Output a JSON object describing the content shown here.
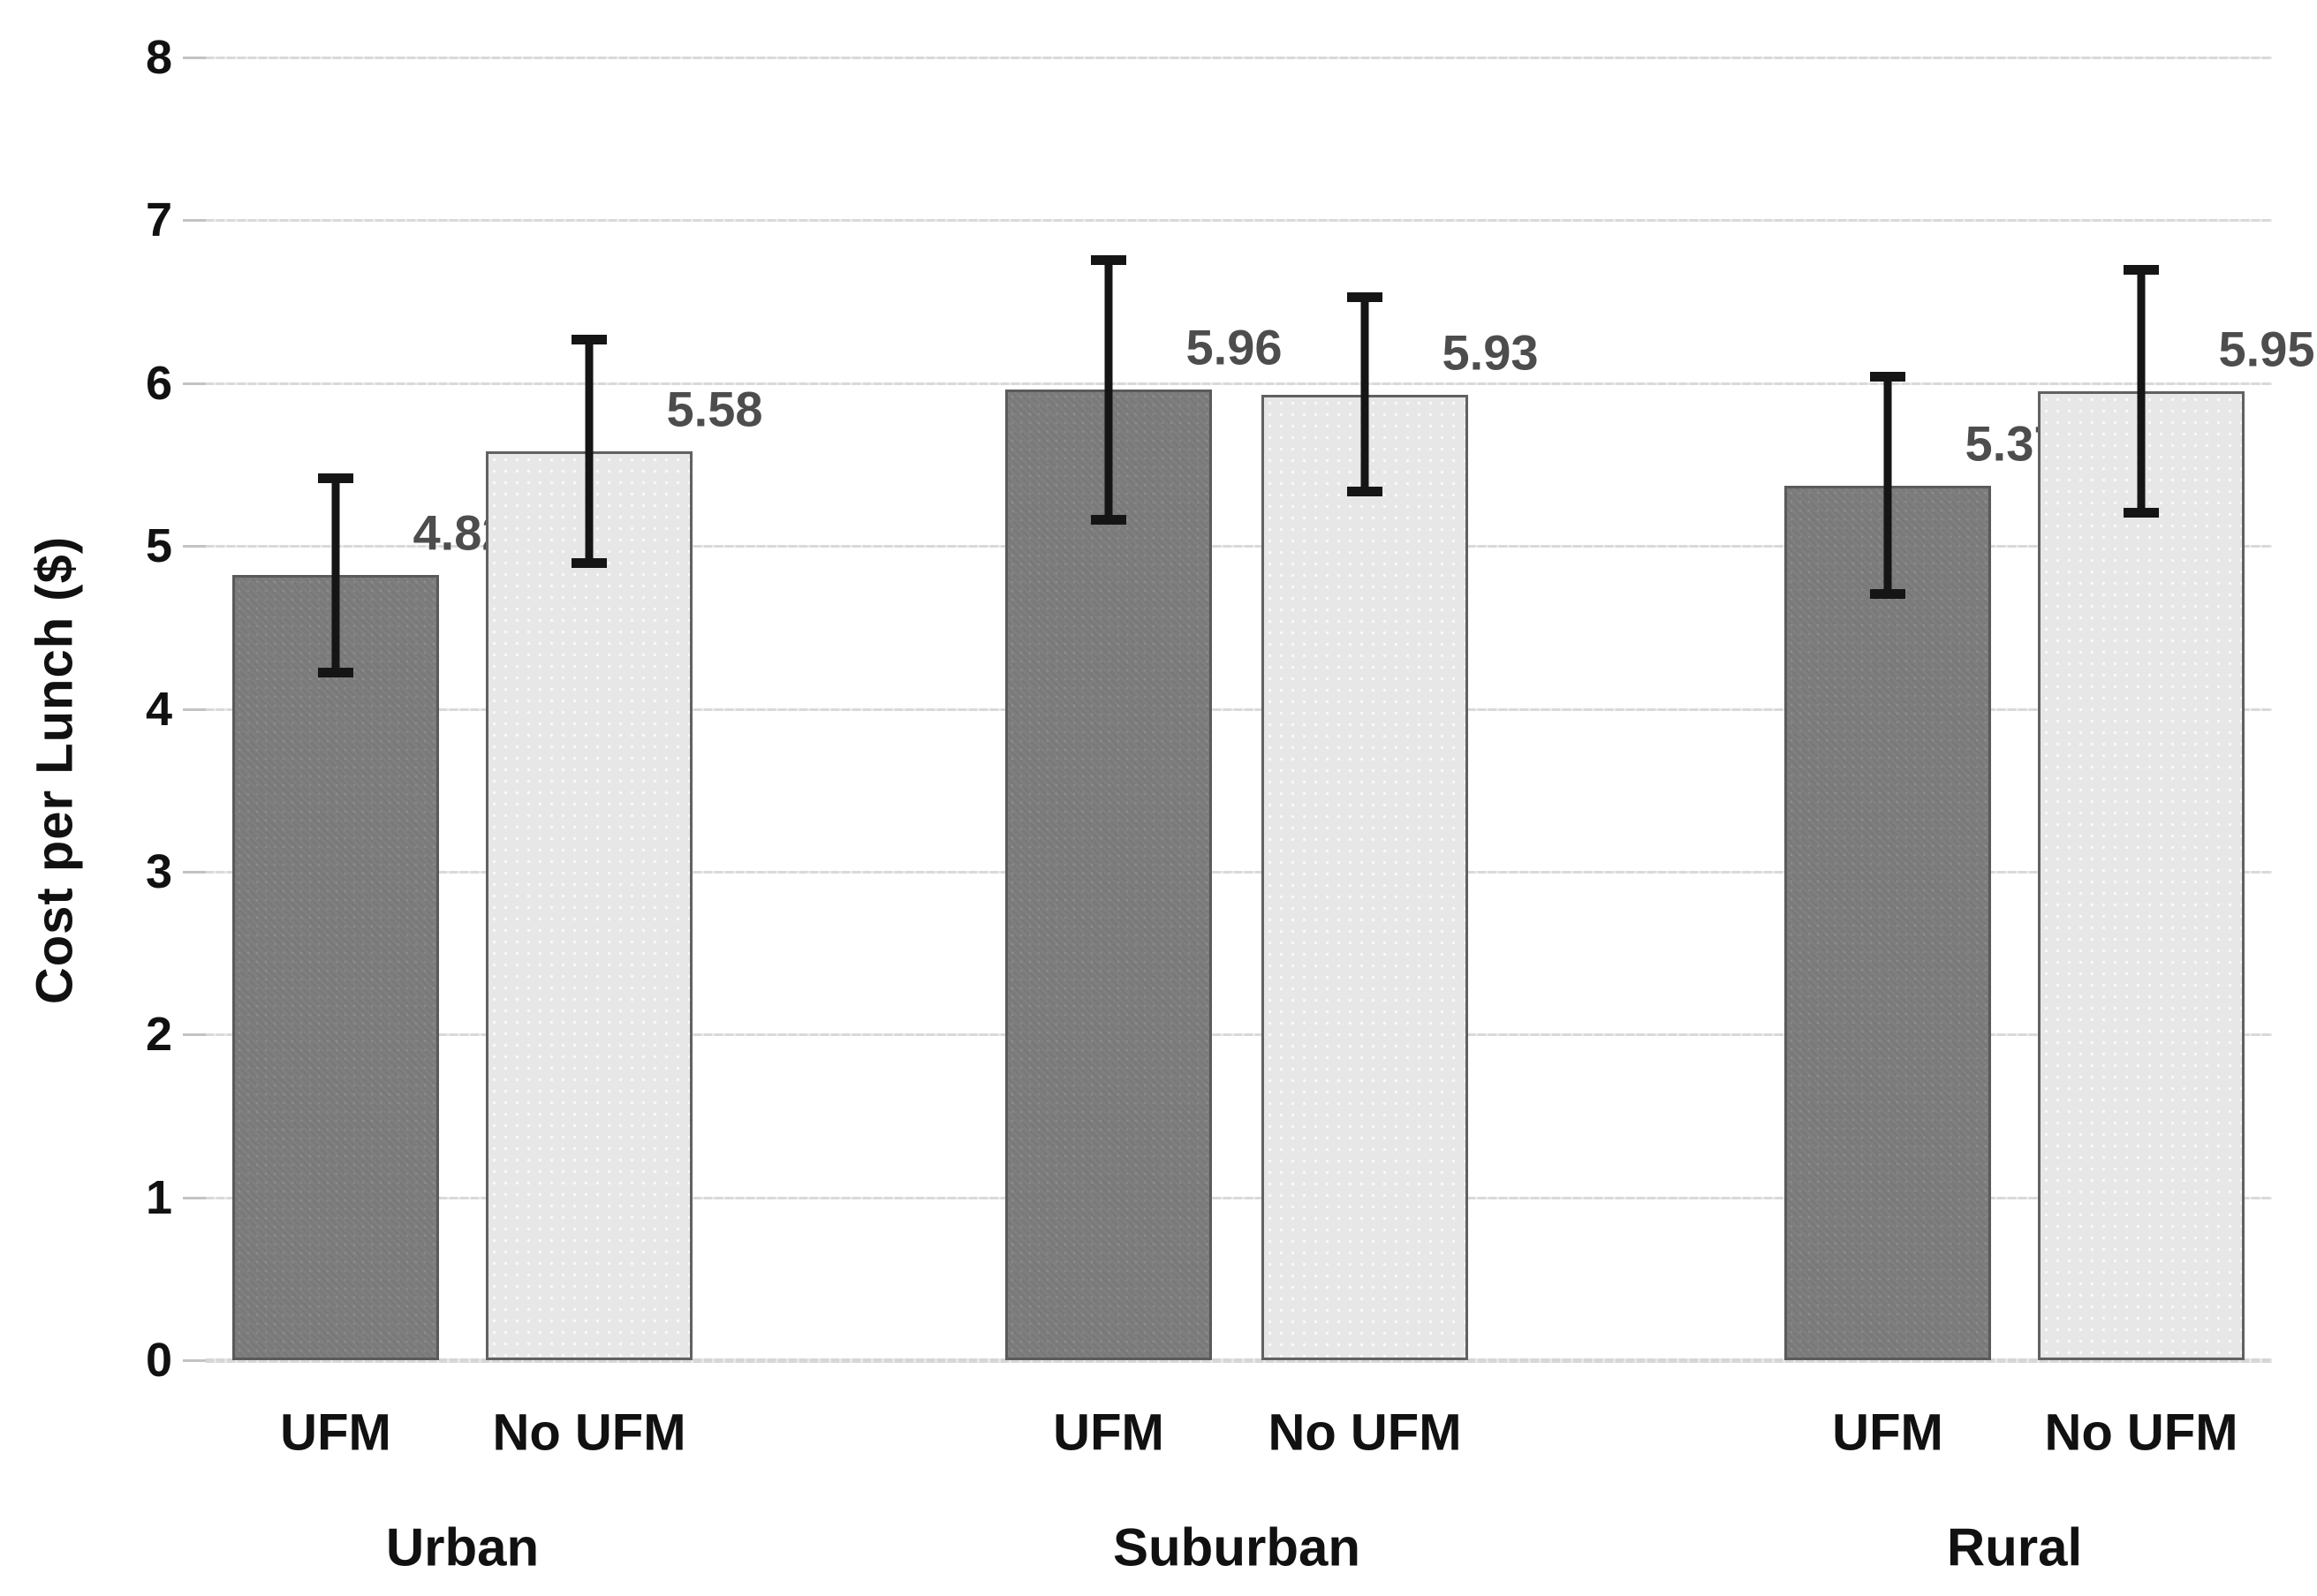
{
  "chart_data": {
    "type": "bar",
    "title": "",
    "xlabel": "",
    "ylabel": "Cost per Lunch ($)",
    "ylim": [
      0,
      8
    ],
    "ytick_step": 1,
    "yticks": [
      "0",
      "1",
      "2",
      "3",
      "4",
      "5",
      "6",
      "7",
      "8"
    ],
    "grid": "horizontal",
    "legend_position": "none",
    "error_bars": true,
    "categories_per_group": [
      "UFM",
      "No UFM"
    ],
    "groups": [
      {
        "label": "Urban",
        "bars": [
          {
            "series": "UFM",
            "value": 4.82,
            "label": "4.82",
            "error_plus": 0.6,
            "error_minus": 0.6
          },
          {
            "series": "No UFM",
            "value": 5.58,
            "label": "5.58",
            "error_plus": 0.69,
            "error_minus": 0.69
          }
        ]
      },
      {
        "label": "Suburban",
        "bars": [
          {
            "series": "UFM",
            "value": 5.96,
            "label": "5.96",
            "error_plus": 0.8,
            "error_minus": 0.8
          },
          {
            "series": "No UFM",
            "value": 5.93,
            "label": "5.93",
            "error_plus": 0.6,
            "error_minus": 0.6
          }
        ]
      },
      {
        "label": "Rural",
        "bars": [
          {
            "series": "UFM",
            "value": 5.37,
            "label": "5.37",
            "error_plus": 0.67,
            "error_minus": 0.67
          },
          {
            "series": "No UFM",
            "value": 5.95,
            "label": "5.95",
            "error_plus": 0.75,
            "error_minus": 0.75
          }
        ]
      }
    ],
    "series_styles": [
      {
        "name": "UFM",
        "fill": "#7f7f7f"
      },
      {
        "name": "No UFM",
        "fill": "#e7e7e7"
      }
    ],
    "colors": {
      "gridline": "#d9d9d9",
      "error_bar": "#151515",
      "data_label": "#4d4d4d",
      "axis_text": "#111111",
      "bar_border_dark": "#5a5a5a",
      "bar_border_light": "#616161"
    }
  }
}
